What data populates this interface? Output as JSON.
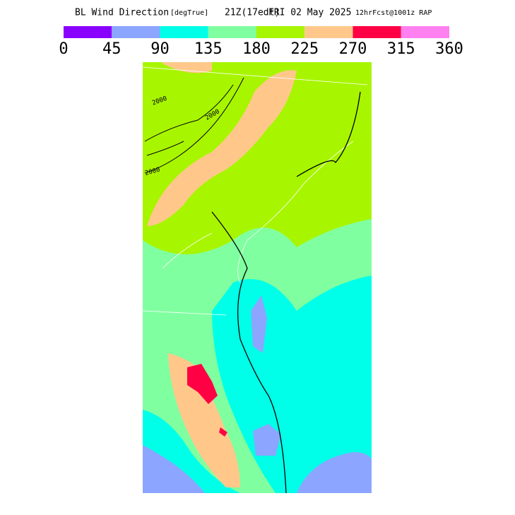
{
  "header": {
    "title": "BL Wind Direction",
    "units": "[degTrue]",
    "valid": "21Z(17edt)",
    "date": "FRI 02 May 2025",
    "run": "12hrFcst@1001z RAP"
  },
  "colorbar": {
    "ticks": [
      0,
      45,
      90,
      135,
      180,
      225,
      270,
      315,
      360
    ],
    "colors": [
      "#8a00ff",
      "#8ca5ff",
      "#00ffe8",
      "#80ffa0",
      "#a8f500",
      "#ffc88a",
      "#ff0044",
      "#ff80f0"
    ]
  },
  "contour_labels": [
    "2000",
    "2000",
    "2000"
  ]
}
